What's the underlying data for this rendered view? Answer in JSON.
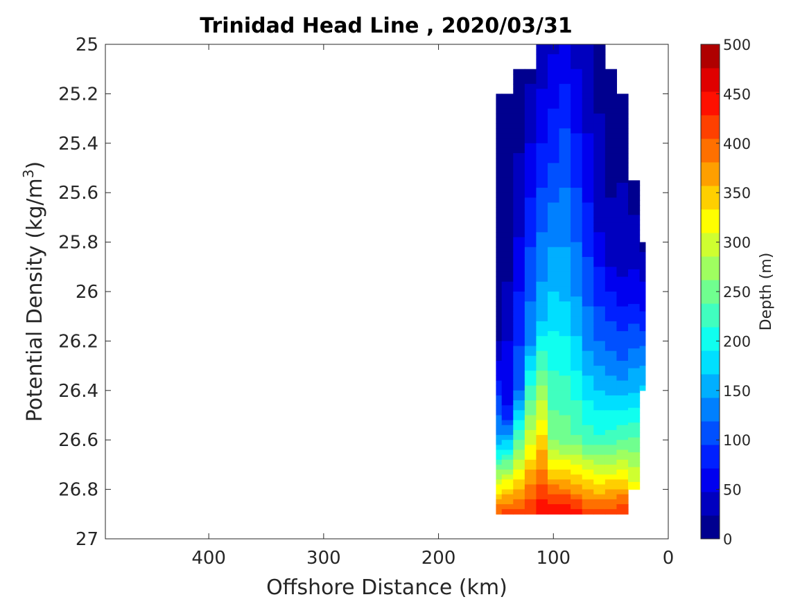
{
  "chart_data": {
    "type": "contour",
    "title": "Trinidad Head Line , 2020/03/31",
    "xlabel": "Offshore Distance (km)",
    "ylabel": "Potential Density (kg/m",
    "ylabel_sup": "3",
    "ylabel_close": ")",
    "xlim": [
      490,
      0
    ],
    "ylim": [
      25,
      27
    ],
    "x_reversed": true,
    "y_reversed": true,
    "xticks": [
      400,
      300,
      200,
      100,
      0
    ],
    "yticks": [
      25,
      25.2,
      25.4,
      25.6,
      25.8,
      26,
      26.2,
      26.4,
      26.6,
      26.8,
      27
    ],
    "xtick_labels": [
      "400",
      "300",
      "200",
      "100",
      "0"
    ],
    "ytick_labels": [
      "25",
      "25.2",
      "25.4",
      "25.6",
      "25.8",
      "26",
      "26.2",
      "26.4",
      "26.6",
      "26.8",
      "27"
    ],
    "colorbar": {
      "label": "Depth (m)",
      "min": 0,
      "max": 500,
      "step": 25,
      "tick_values": [
        0,
        50,
        100,
        150,
        200,
        250,
        300,
        350,
        400,
        450,
        500
      ],
      "tick_labels": [
        "0",
        "50",
        "100",
        "150",
        "200",
        "250",
        "300",
        "350",
        "400",
        "450",
        "500"
      ]
    },
    "depth_levels": [
      0,
      25,
      50,
      75,
      100,
      125,
      150,
      175,
      200,
      225,
      250,
      275,
      300,
      325,
      350,
      375,
      400,
      425,
      450,
      475,
      500
    ],
    "level_colors": [
      "#00008F",
      "#0000BF",
      "#0000EF",
      "#0020FF",
      "#0050FF",
      "#0080FF",
      "#00AFFF",
      "#00DFFF",
      "#10FFEF",
      "#40FFBF",
      "#70FF8F",
      "#9FFF60",
      "#CFFF30",
      "#FFFF00",
      "#FFCF00",
      "#FF9F00",
      "#FF7000",
      "#FF4000",
      "#FF1000",
      "#DF0000",
      "#AF0000"
    ],
    "stations_km": [
      150,
      140,
      130,
      120,
      110,
      100,
      90,
      80,
      70,
      60,
      50,
      40,
      30,
      20
    ],
    "station_density_min": [
      25.2,
      25.2,
      25.1,
      25.1,
      25.0,
      25.0,
      25.0,
      25.0,
      25.0,
      25.0,
      25.1,
      25.2,
      25.55,
      25.8
    ],
    "station_density_max": [
      26.9,
      26.9,
      26.9,
      26.9,
      26.9,
      26.9,
      26.9,
      26.9,
      26.9,
      26.9,
      26.9,
      26.9,
      26.8,
      26.4
    ],
    "depth_profiles": [
      [
        [
          25.2,
          10
        ],
        [
          26.2,
          22
        ],
        [
          26.6,
          160
        ],
        [
          26.9,
          430
        ]
      ],
      [
        [
          25.2,
          10
        ],
        [
          25.9,
          20
        ],
        [
          26.5,
          80
        ],
        [
          26.9,
          445
        ]
      ],
      [
        [
          25.1,
          15
        ],
        [
          25.6,
          30
        ],
        [
          26.4,
          120
        ],
        [
          26.9,
          440
        ]
      ],
      [
        [
          25.1,
          20
        ],
        [
          25.4,
          50
        ],
        [
          26.2,
          145
        ],
        [
          26.9,
          450
        ]
      ],
      [
        [
          25.0,
          30
        ],
        [
          25.4,
          75
        ],
        [
          26.1,
          170
        ],
        [
          26.9,
          470
        ]
      ],
      [
        [
          25.0,
          45
        ],
        [
          25.4,
          90
        ],
        [
          26.0,
          175
        ],
        [
          26.6,
          270
        ],
        [
          26.9,
          480
        ]
      ],
      [
        [
          25.0,
          55
        ],
        [
          25.3,
          95
        ],
        [
          26.0,
          170
        ],
        [
          26.6,
          265
        ],
        [
          26.9,
          475
        ]
      ],
      [
        [
          25.0,
          40
        ],
        [
          25.4,
          80
        ],
        [
          26.1,
          160
        ],
        [
          26.6,
          255
        ],
        [
          26.9,
          460
        ]
      ],
      [
        [
          25.0,
          25
        ],
        [
          25.5,
          60
        ],
        [
          26.2,
          140
        ],
        [
          26.6,
          240
        ],
        [
          26.9,
          445
        ]
      ],
      [
        [
          25.0,
          15
        ],
        [
          25.7,
          40
        ],
        [
          26.2,
          125
        ],
        [
          26.6,
          230
        ],
        [
          26.9,
          435
        ]
      ],
      [
        [
          25.1,
          10
        ],
        [
          25.8,
          30
        ],
        [
          26.3,
          140
        ],
        [
          26.6,
          235
        ],
        [
          26.9,
          440
        ]
      ],
      [
        [
          25.2,
          10
        ],
        [
          25.9,
          40
        ],
        [
          26.3,
          130
        ],
        [
          26.6,
          245
        ],
        [
          26.9,
          450
        ]
      ],
      [
        [
          25.55,
          10
        ],
        [
          26.0,
          60
        ],
        [
          26.4,
          175
        ],
        [
          26.8,
          340
        ]
      ],
      [
        [
          25.8,
          15
        ],
        [
          26.1,
          80
        ],
        [
          26.4,
          185
        ]
      ]
    ]
  }
}
